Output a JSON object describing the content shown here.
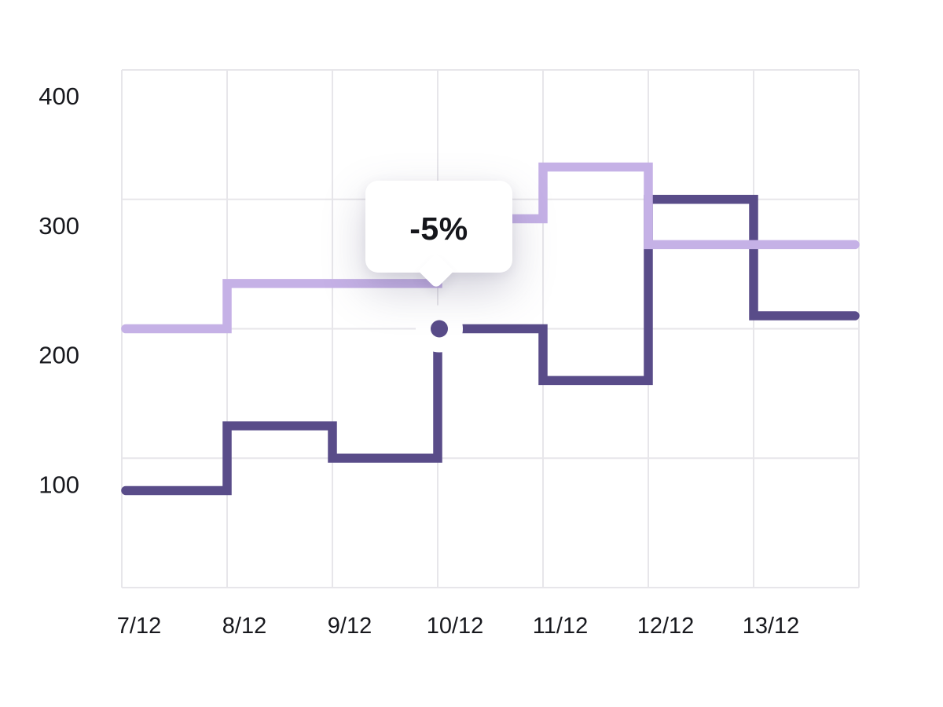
{
  "chart_data": {
    "type": "line",
    "step_style": "step-after",
    "title": "",
    "xlabel": "",
    "ylabel": "",
    "categories": [
      "7/12",
      "8/12",
      "9/12",
      "10/12",
      "11/12",
      "12/12",
      "13/12"
    ],
    "series": [
      {
        "name": "dark-purple",
        "color": "#594c89",
        "values": [
          75,
          125,
          100,
          200,
          160,
          300,
          210
        ]
      },
      {
        "name": "light-purple",
        "color": "#c5b1e6",
        "values": [
          200,
          235,
          235,
          285,
          325,
          265,
          265
        ]
      }
    ],
    "y_axis": {
      "min": 0,
      "max": 400,
      "tick_step": 100,
      "tick_labels": [
        "400",
        "300",
        "200",
        "100"
      ]
    },
    "grid": {
      "show": true,
      "color": "#e7e6ea"
    },
    "legend": "none",
    "tooltip": {
      "label": "-5%",
      "category": "10/12",
      "series": "dark-purple",
      "value": 200,
      "marker_color": "#594c89",
      "halo_color": "#ffffff"
    }
  },
  "colors": {
    "background": "#ffffff",
    "tick_text": "#17181d",
    "tooltip_text": "#15161b",
    "tooltip_bg": "#ffffff"
  }
}
